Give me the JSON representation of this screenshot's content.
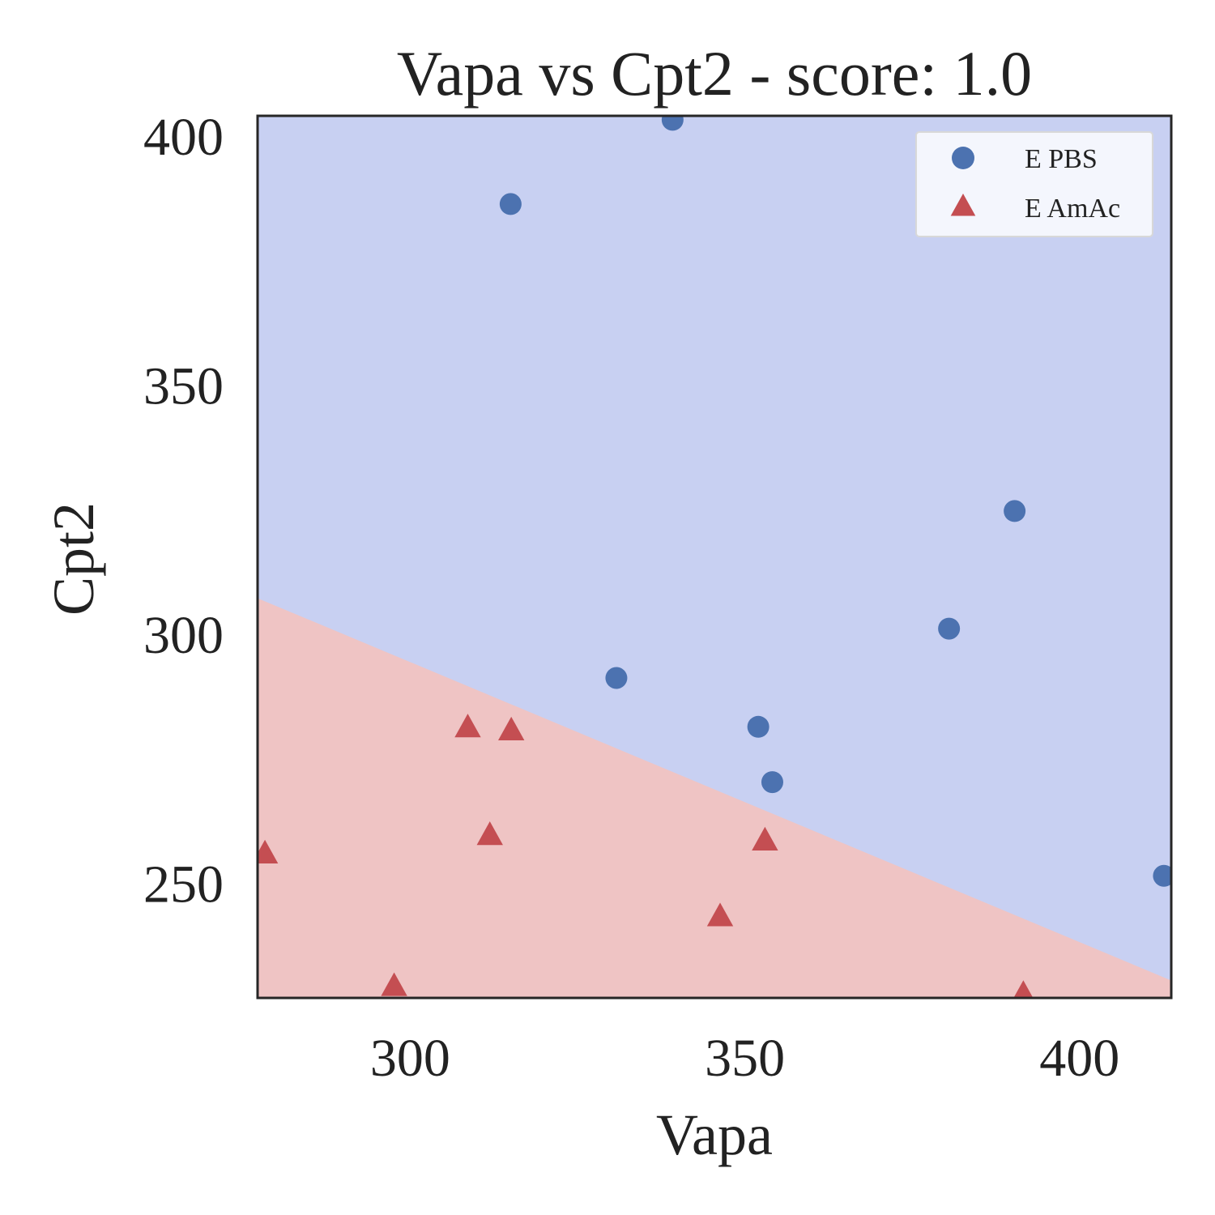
{
  "chart_data": {
    "type": "scatter",
    "title": "Vapa vs Cpt2 - score: 1.0",
    "xlabel": "Vapa",
    "ylabel": "Cpt2",
    "xlim": [
      277.2,
      413.7
    ],
    "ylim": [
      227.2,
      404.2
    ],
    "xticks": [
      300,
      350,
      400
    ],
    "yticks": [
      250,
      300,
      350,
      400
    ],
    "grid": false,
    "legend_position": "top-right",
    "decision_boundary": {
      "left": {
        "x": 277.2,
        "y": 307.4
      },
      "right": {
        "x": 413.7,
        "y": 230.7
      },
      "above_color": "#c8d0f2",
      "below_color": "#efc4c4"
    },
    "series": [
      {
        "name": "E PBS",
        "marker": "circle",
        "color": "#4c72b0",
        "points": [
          {
            "x": 339.2,
            "y": 403.4
          },
          {
            "x": 315.0,
            "y": 386.5
          },
          {
            "x": 390.3,
            "y": 324.9
          },
          {
            "x": 380.5,
            "y": 301.3
          },
          {
            "x": 330.8,
            "y": 291.4
          },
          {
            "x": 352.0,
            "y": 281.6
          },
          {
            "x": 354.1,
            "y": 270.5
          },
          {
            "x": 412.6,
            "y": 251.7
          }
        ]
      },
      {
        "name": "E AmAc",
        "marker": "triangle",
        "color": "#c44e52",
        "points": [
          {
            "x": 308.6,
            "y": 281.3
          },
          {
            "x": 315.1,
            "y": 280.7
          },
          {
            "x": 311.9,
            "y": 259.7
          },
          {
            "x": 353.0,
            "y": 258.6
          },
          {
            "x": 278.3,
            "y": 256.0
          },
          {
            "x": 346.3,
            "y": 243.4
          },
          {
            "x": 297.6,
            "y": 229.4
          },
          {
            "x": 391.6,
            "y": 227.8
          }
        ]
      }
    ]
  }
}
